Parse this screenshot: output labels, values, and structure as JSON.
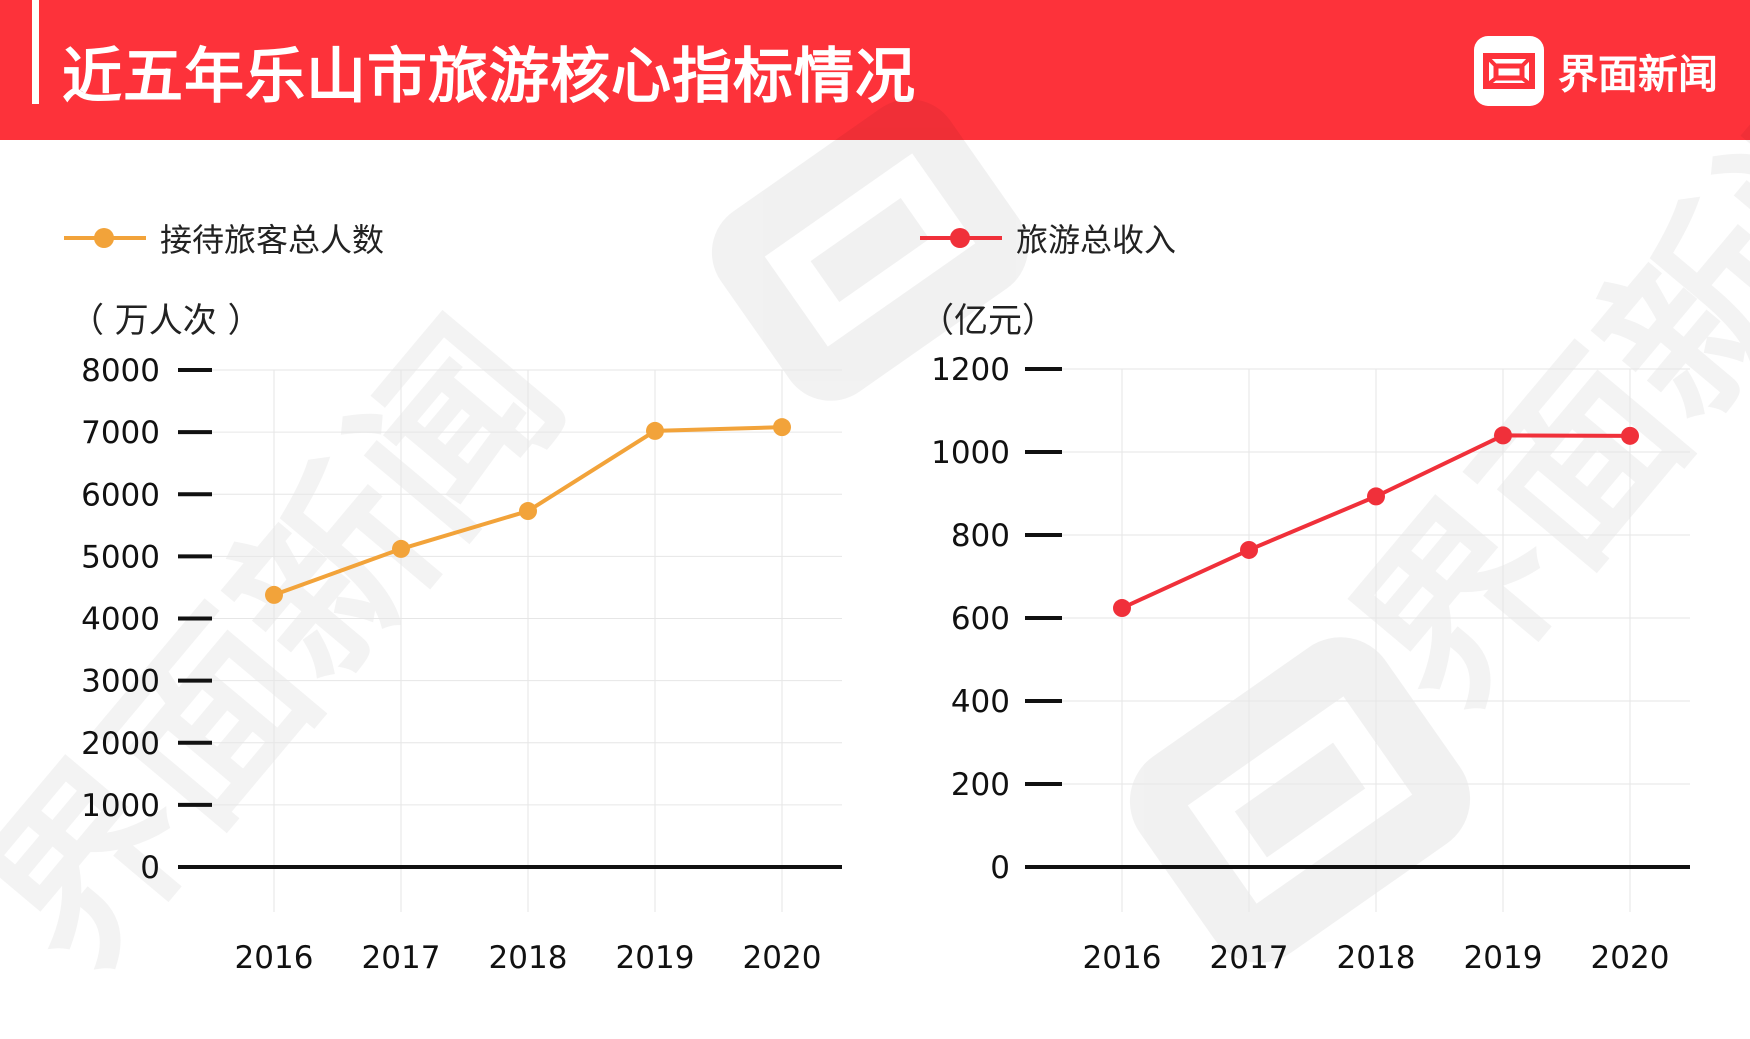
{
  "header": {
    "title": "近五年乐山市旅游核心指标情况",
    "brand_name": "界面新闻",
    "brand_logo_icon": "jiemian-logo-icon",
    "background_color": "#fd323a"
  },
  "watermark": {
    "text": "界面新闻"
  },
  "chart_data": [
    {
      "type": "line",
      "legend_label": "接待旅客总人数",
      "unit_label": "（ 万人次 ）",
      "color": "#f2a33a",
      "categories": [
        "2016",
        "2017",
        "2018",
        "2019",
        "2020"
      ],
      "values": [
        4380,
        5120,
        5730,
        7020,
        7080
      ],
      "ylim": [
        0,
        8000
      ],
      "yticks": [
        "0",
        "1000",
        "2000",
        "3000",
        "4000",
        "5000",
        "6000",
        "7000",
        "8000"
      ],
      "grid": true,
      "legend_position": "top-left"
    },
    {
      "type": "line",
      "legend_label": "旅游总收入",
      "unit_label": "（亿元）",
      "color": "#f0303a",
      "categories": [
        "2016",
        "2017",
        "2018",
        "2019",
        "2020"
      ],
      "values": [
        624,
        764,
        893,
        1040,
        1039
      ],
      "ylim": [
        0,
        1200
      ],
      "yticks": [
        "0",
        "200",
        "400",
        "600",
        "800",
        "1000",
        "1200"
      ],
      "grid": true,
      "legend_position": "top-left"
    }
  ]
}
